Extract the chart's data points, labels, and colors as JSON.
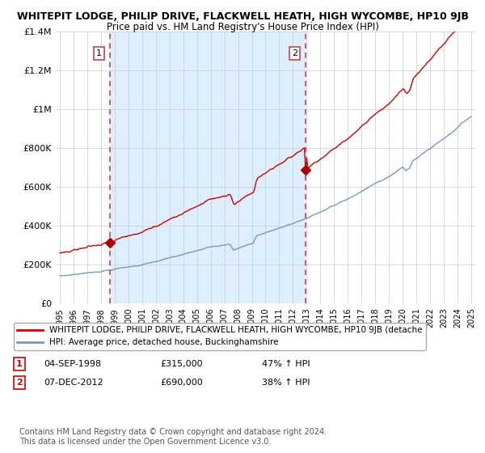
{
  "title_line1": "WHITEPIT LODGE, PHILIP DRIVE, FLACKWELL HEATH, HIGH WYCOMBE, HP10 9JB",
  "title_line2": "Price paid vs. HM Land Registry's House Price Index (HPI)",
  "bg_color": "#ffffff",
  "plot_bg_color": "#ffffff",
  "fill_color": "#ddeeff",
  "grid_color": "#cccccc",
  "red_line_color": "#cc0000",
  "blue_line_color": "#7799bb",
  "dashed_vline_color": "#cc4444",
  "marker_color": "#aa0000",
  "ylim": [
    0,
    1400000
  ],
  "yticks": [
    0,
    200000,
    400000,
    600000,
    800000,
    1000000,
    1200000,
    1400000
  ],
  "ytick_labels": [
    "£0",
    "£200K",
    "£400K",
    "£600K",
    "£800K",
    "£1M",
    "£1.2M",
    "£1.4M"
  ],
  "sale1_date_x": 1998.67,
  "sale1_price": 315000,
  "sale2_date_x": 2012.92,
  "sale2_price": 690000,
  "legend_red_label": "WHITEPIT LODGE, PHILIP DRIVE, FLACKWELL HEATH, HIGH WYCOMBE, HP10 9JB (detache",
  "legend_blue_label": "HPI: Average price, detached house, Buckinghamshire",
  "footnote": "Contains HM Land Registry data © Crown copyright and database right 2024.\nThis data is licensed under the Open Government Licence v3.0.",
  "xmin": 1995,
  "xmax": 2025
}
